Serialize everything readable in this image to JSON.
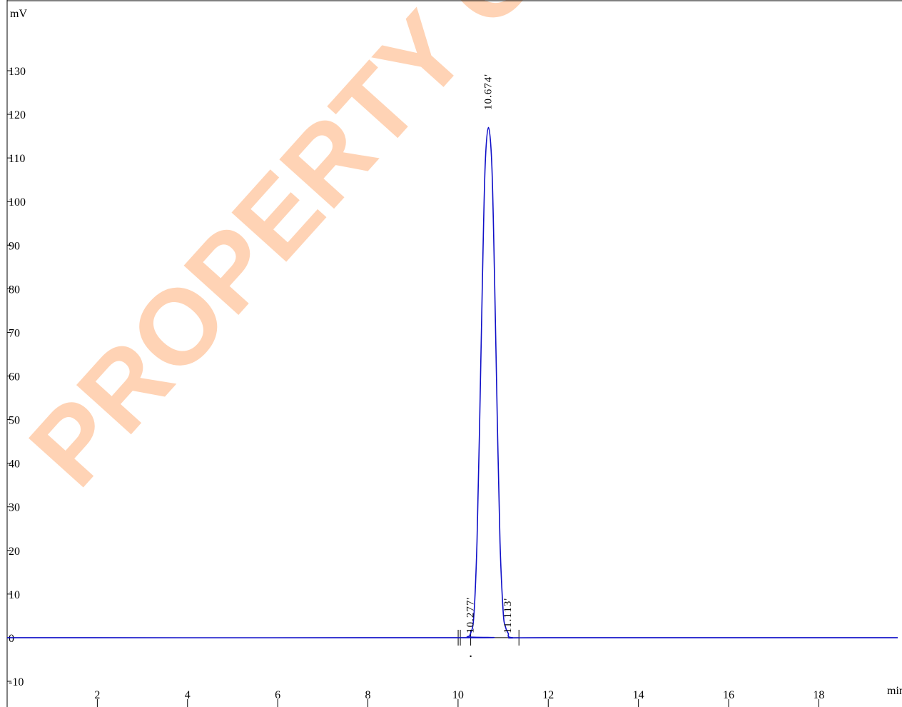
{
  "chart_data": {
    "type": "line",
    "xlabel": "min",
    "ylabel": "mV",
    "xlim": [
      0.0,
      19.75
    ],
    "ylim": [
      -10,
      140
    ],
    "x_ticks": [
      2,
      4,
      6,
      8,
      10,
      12,
      14,
      16,
      18
    ],
    "y_ticks": [
      -10,
      0,
      10,
      20,
      30,
      40,
      50,
      60,
      70,
      80,
      90,
      100,
      110,
      120,
      130
    ],
    "grid": false,
    "series": [
      {
        "color": "#1010c8",
        "x": [
          0.0,
          10.0,
          10.2,
          10.277,
          10.35,
          10.42,
          10.48,
          10.54,
          10.6,
          10.674,
          10.75,
          10.81,
          10.87,
          10.93,
          11.0,
          11.05,
          11.113,
          11.2,
          12.0,
          19.75
        ],
        "y": [
          0.0,
          0.0,
          0.2,
          1.0,
          5.0,
          22.0,
          50.0,
          82.0,
          108.0,
          117.0,
          108.0,
          82.0,
          50.0,
          22.0,
          6.0,
          2.5,
          1.0,
          0.0,
          0.0,
          0.0
        ]
      }
    ],
    "peaks": [
      {
        "time": 10.674,
        "label": "10.674'"
      },
      {
        "time": 10.277,
        "label": "10.277'"
      },
      {
        "time": 11.113,
        "label": "11.113'"
      }
    ],
    "baseline_markers": [
      10.05,
      10.28,
      11.35
    ]
  },
  "watermark": "PROPERTY OF PEPTIDES",
  "colors": {
    "trace": "#1010c8",
    "watermark": "#ffb07a"
  }
}
